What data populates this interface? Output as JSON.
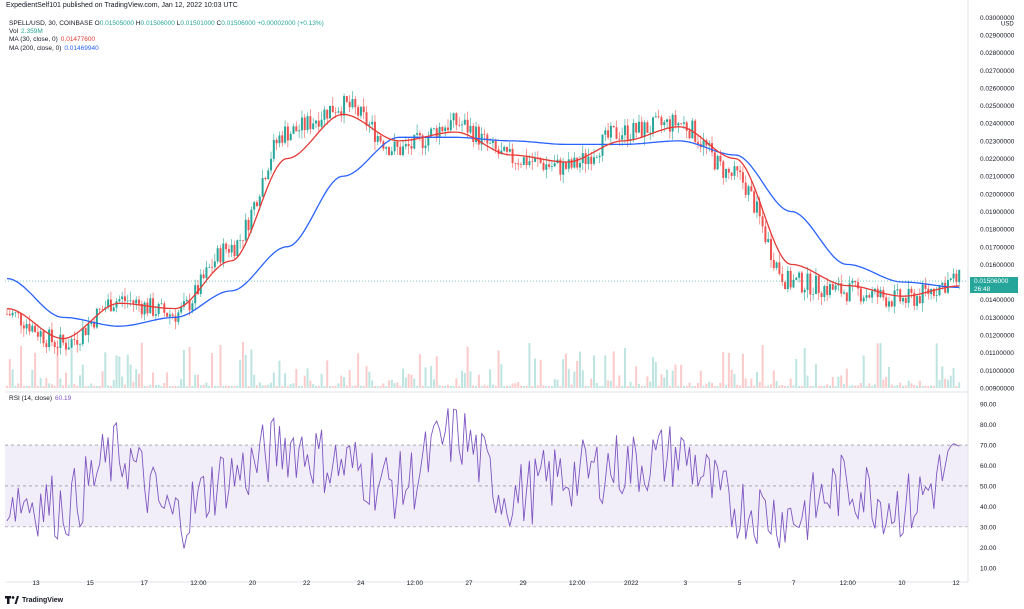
{
  "header": {
    "published": "ExpedientSelf101 published on TradingView.com, Jan 12, 2022 10:03 UTC"
  },
  "symbol": {
    "pair": "SPELL/USD, 30, COINBASE",
    "open_label": "O",
    "open": "0.01505000",
    "high_label": "H",
    "high": "0.01506000",
    "low_label": "L",
    "low": "0.01501000",
    "close_label": "C",
    "close": "0.01506000",
    "change": "+0.00002000 (+0.13%)"
  },
  "indicators": {
    "vol_label": "Vol",
    "vol_value": "2.359M",
    "ma30_label": "MA (30, close, 0)",
    "ma30_value": "0.01477600",
    "ma200_label": "MA (200, close, 0)",
    "ma200_value": "0.01469940",
    "rsi_label": "RSI (14, close)",
    "rsi_value": "60.19"
  },
  "price_axis": {
    "currency": "USD",
    "labels": [
      "0.03000000",
      "0.02900000",
      "0.02800000",
      "0.02700000",
      "0.02600000",
      "0.02500000",
      "0.02400000",
      "0.02300000",
      "0.02200000",
      "0.02100000",
      "0.02000000",
      "0.01900000",
      "0.01800000",
      "0.01700000",
      "0.01600000",
      "0.01400000",
      "0.01300000",
      "0.01200000",
      "0.01100000",
      "0.01000000",
      "0.00900000"
    ],
    "current_price": "0.01506000",
    "countdown": "26:48"
  },
  "rsi_axis": {
    "labels": [
      "90.00",
      "80.00",
      "70.00",
      "60.00",
      "50.00",
      "40.00",
      "30.00",
      "20.00",
      "10.00"
    ]
  },
  "time_axis": {
    "labels": [
      "13",
      "15",
      "17",
      "12:00",
      "20",
      "22",
      "24",
      "12:00",
      "27",
      "29",
      "12:00",
      "2022",
      "3",
      "5",
      "7",
      "12:00",
      "10",
      "12"
    ]
  },
  "footer": {
    "brand": "TradingView"
  },
  "colors": {
    "up": "#26a69a",
    "down": "#ef5350",
    "ma30": "#e53935",
    "ma200": "#2962ff",
    "rsi": "#7e57c2",
    "rsi_band": "#7e57c2",
    "grid": "#f0f3fa"
  },
  "chart_data": {
    "type": "line",
    "title": "SPELL/USD, 30, COINBASE",
    "x": [
      "13",
      "15",
      "17",
      "12:00",
      "20",
      "22",
      "24",
      "12:00",
      "27",
      "29",
      "12:00",
      "2022",
      "3",
      "5",
      "7",
      "12:00",
      "10",
      "12"
    ],
    "series": [
      {
        "name": "SPELL/USD",
        "values": [
          0.0132,
          0.0115,
          0.014,
          0.0132,
          0.017,
          0.0235,
          0.025,
          0.0225,
          0.024,
          0.022,
          0.0215,
          0.0235,
          0.024,
          0.021,
          0.015,
          0.0145,
          0.014,
          0.0151
        ]
      },
      {
        "name": "MA (30, close, 0)",
        "values": [
          0.0135,
          0.0118,
          0.0138,
          0.0135,
          0.0162,
          0.022,
          0.0245,
          0.023,
          0.0235,
          0.0222,
          0.0218,
          0.023,
          0.0238,
          0.022,
          0.016,
          0.0148,
          0.0142,
          0.01478
        ]
      },
      {
        "name": "MA (200, close, 0)",
        "values": [
          0.0152,
          0.013,
          0.0125,
          0.013,
          0.0145,
          0.017,
          0.021,
          0.0232,
          0.0232,
          0.023,
          0.0228,
          0.0228,
          0.023,
          0.0222,
          0.019,
          0.016,
          0.015,
          0.0147
        ]
      },
      {
        "name": "RSI (14, close)",
        "values": [
          45,
          40,
          65,
          35,
          55,
          70,
          60,
          50,
          75,
          45,
          55,
          60,
          65,
          40,
          35,
          50,
          40,
          60.19
        ]
      }
    ],
    "ylim": [
      0.009,
      0.03
    ],
    "rsi_ylim": [
      10,
      90
    ],
    "rsi_bands": [
      30,
      50,
      70
    ],
    "grid": false
  }
}
